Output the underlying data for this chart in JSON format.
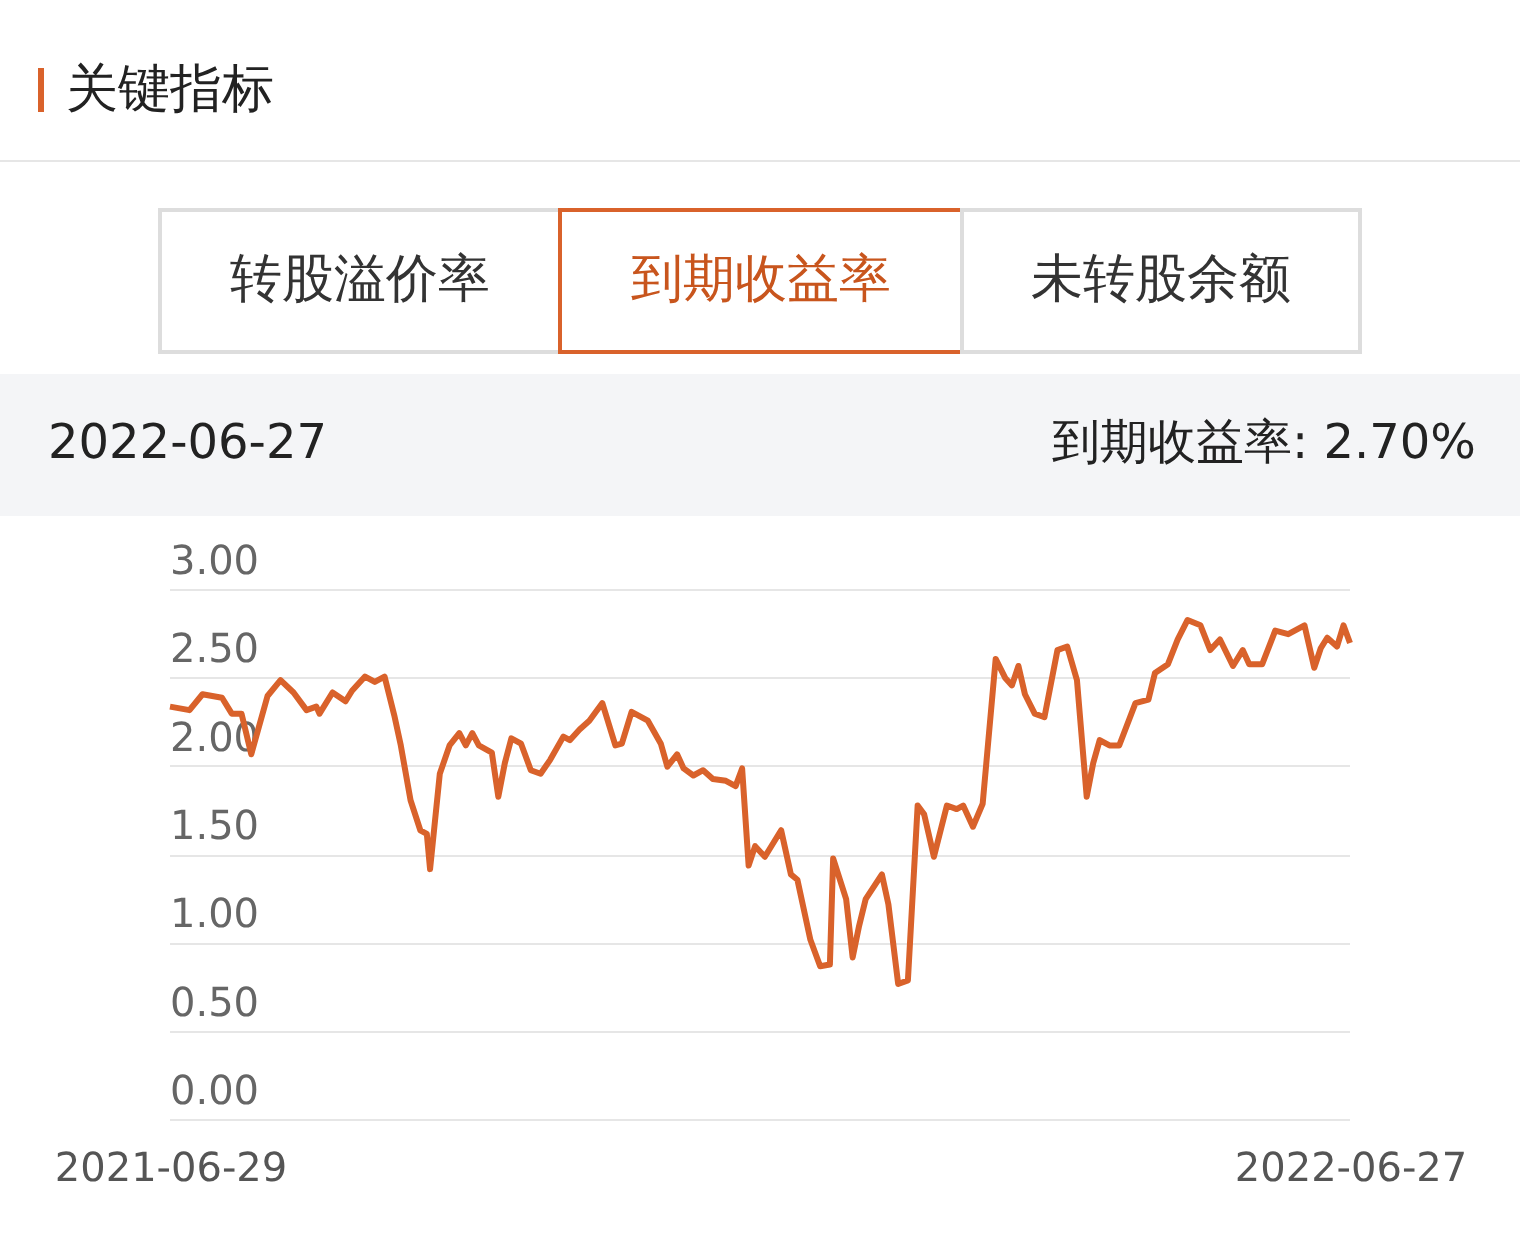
{
  "chart_data": {
    "type": "line",
    "title": "关键指标",
    "annotations": [
      "转股溢价率",
      "到期收益率",
      "未转股余额",
      "2022-06-27",
      "到期收益率: 2.70%"
    ],
    "x": [
      "2021-06-29",
      "2021-07-05",
      "2021-07-09",
      "2021-07-15",
      "2021-07-18",
      "2021-07-21",
      "2021-07-24",
      "2021-07-29",
      "2021-08-02",
      "2021-08-06",
      "2021-08-10",
      "2021-08-13",
      "2021-08-14",
      "2021-08-18",
      "2021-08-22",
      "2021-08-24",
      "2021-08-28",
      "2021-08-31",
      "2021-09-03",
      "2021-09-06",
      "2021-09-08",
      "2021-09-11",
      "2021-09-14",
      "2021-09-16",
      "2021-09-17",
      "2021-09-20",
      "2021-09-23",
      "2021-09-26",
      "2021-09-28",
      "2021-09-30",
      "2021-10-02",
      "2021-10-06",
      "2021-10-08",
      "2021-10-10",
      "2021-10-12",
      "2021-10-15",
      "2021-10-18",
      "2021-10-21",
      "2021-10-24",
      "2021-10-28",
      "2021-10-30",
      "2021-11-02",
      "2021-11-05",
      "2021-11-09",
      "2021-11-13",
      "2021-11-15",
      "2021-11-18",
      "2021-11-23",
      "2021-11-27",
      "2021-11-29",
      "2021-12-02",
      "2021-12-04",
      "2021-12-07",
      "2021-12-10",
      "2021-12-13",
      "2021-12-17",
      "2021-12-20",
      "2021-12-22",
      "2021-12-24",
      "2021-12-26",
      "2021-12-29",
      "2022-01-03",
      "2022-01-06",
      "2022-01-08",
      "2022-01-12",
      "2022-01-15",
      "2022-01-18",
      "2022-01-19",
      "2022-01-23",
      "2022-01-25",
      "2022-01-27",
      "2022-01-29",
      "2022-02-03",
      "2022-02-05",
      "2022-02-08",
      "2022-02-11",
      "2022-02-14",
      "2022-02-16",
      "2022-02-19",
      "2022-02-23",
      "2022-02-26",
      "2022-02-28",
      "2022-03-03",
      "2022-03-06",
      "2022-03-10",
      "2022-03-13",
      "2022-03-15",
      "2022-03-17",
      "2022-03-19",
      "2022-03-22",
      "2022-03-25",
      "2022-03-29",
      "2022-04-01",
      "2022-04-04",
      "2022-04-07",
      "2022-04-09",
      "2022-04-11",
      "2022-04-14",
      "2022-04-17",
      "2022-04-22",
      "2022-04-26",
      "2022-04-28",
      "2022-05-02",
      "2022-05-05",
      "2022-05-08",
      "2022-05-12",
      "2022-05-15",
      "2022-05-18",
      "2022-05-22",
      "2022-05-25",
      "2022-05-27",
      "2022-05-31",
      "2022-06-04",
      "2022-06-08",
      "2022-06-13",
      "2022-06-16",
      "2022-06-18",
      "2022-06-20",
      "2022-06-23",
      "2022-06-25",
      "2022-06-27"
    ],
    "series": [
      {
        "color": "#d9622b",
        "values": [
          2.34,
          2.32,
          2.41,
          2.39,
          2.3,
          2.3,
          2.07,
          2.4,
          2.49,
          2.42,
          2.32,
          2.34,
          2.3,
          2.42,
          2.37,
          2.43,
          2.51,
          2.48,
          2.51,
          2.29,
          2.12,
          1.81,
          1.64,
          1.62,
          1.42,
          1.96,
          2.12,
          2.19,
          2.12,
          2.19,
          2.12,
          2.08,
          1.83,
          2.02,
          2.16,
          2.13,
          1.98,
          1.96,
          2.04,
          2.17,
          2.15,
          2.21,
          2.26,
          2.36,
          2.12,
          2.13,
          2.31,
          2.26,
          2.13,
          2.0,
          2.07,
          1.99,
          1.95,
          1.98,
          1.93,
          1.92,
          1.89,
          1.99,
          1.44,
          1.55,
          1.49,
          1.64,
          1.39,
          1.36,
          1.02,
          0.87,
          0.88,
          1.48,
          1.25,
          0.92,
          1.1,
          1.25,
          1.39,
          1.22,
          0.77,
          0.79,
          1.78,
          1.73,
          1.49,
          1.78,
          1.76,
          1.78,
          1.66,
          1.79,
          2.61,
          2.5,
          2.46,
          2.57,
          2.41,
          2.3,
          2.28,
          2.66,
          2.68,
          2.49,
          1.83,
          2.02,
          2.15,
          2.12,
          2.12,
          2.36,
          2.38,
          2.53,
          2.58,
          2.72,
          2.83,
          2.8,
          2.66,
          2.72,
          2.57,
          2.66,
          2.58,
          2.58,
          2.77,
          2.75,
          2.8,
          2.56,
          2.67,
          2.73,
          2.68,
          2.8,
          2.7
        ]
      }
    ],
    "xlim": [
      "2021-06-29",
      "2022-06-27"
    ],
    "xticks": [
      "2021-06-29",
      "2022-06-27"
    ],
    "ylim": [
      0,
      3
    ],
    "yticks": [
      {
        "value": 0,
        "label": "0.00"
      },
      {
        "value": 0.5,
        "label": "0.50"
      },
      {
        "value": 1,
        "label": "1.00"
      },
      {
        "value": 1.5,
        "label": "1.50"
      },
      {
        "value": 2,
        "label": "2.00"
      },
      {
        "value": 2.5,
        "label": "2.50"
      },
      {
        "value": 3,
        "label": "3.00"
      }
    ],
    "grid": "y",
    "line_style": "solid",
    "marker": "none"
  }
}
